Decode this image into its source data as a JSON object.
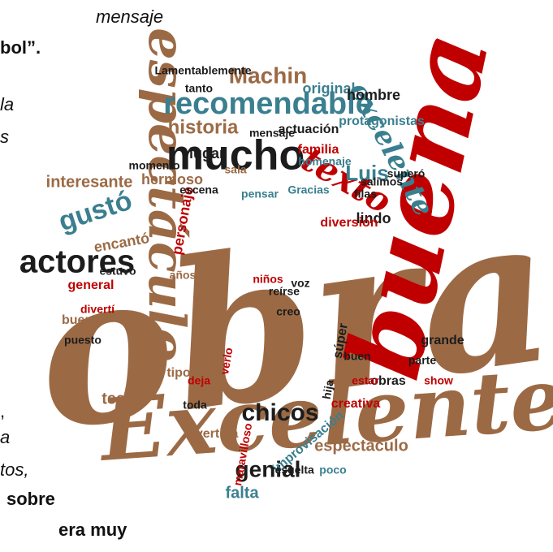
{
  "side_text": [
    "mensaje",
    "bol”.",
    "la",
    "s",
    ",",
    "a",
    "tos,",
    "sobre",
    "era muy"
  ],
  "words": [
    "obra",
    "buena",
    "Excelente",
    "espectáculo",
    "mucho",
    "recomendable",
    "excelente",
    "texto",
    "actores",
    "gustó",
    "genial",
    "chicos",
    "historia",
    "Machin",
    "Luis",
    "espectaculo",
    "falta",
    "personaje",
    "interesante",
    "familia",
    "actuación",
    "teatro",
    "general",
    "creativa",
    "Lamentablemente",
    "original",
    "hombre",
    "protagonistas",
    "lugar",
    "filas",
    "lindo",
    "encantó",
    "estuvo",
    "hermoso",
    "diversión",
    "salimos",
    "superó",
    "niños",
    "reírse",
    "creo",
    "momento",
    "bueno",
    "puesto",
    "divertí",
    "tipo",
    "deja",
    "verlo",
    "toda",
    "divertida",
    "maravilloso",
    "improvisación",
    "resuelta",
    "poco",
    "obras",
    "show",
    "grande",
    "parte",
    "estar",
    "buen",
    "súper",
    "sala",
    "mensaje",
    "homenaje",
    "Gracias",
    "pensar",
    "escena",
    "tanto",
    "años",
    "voz",
    "hija"
  ]
}
